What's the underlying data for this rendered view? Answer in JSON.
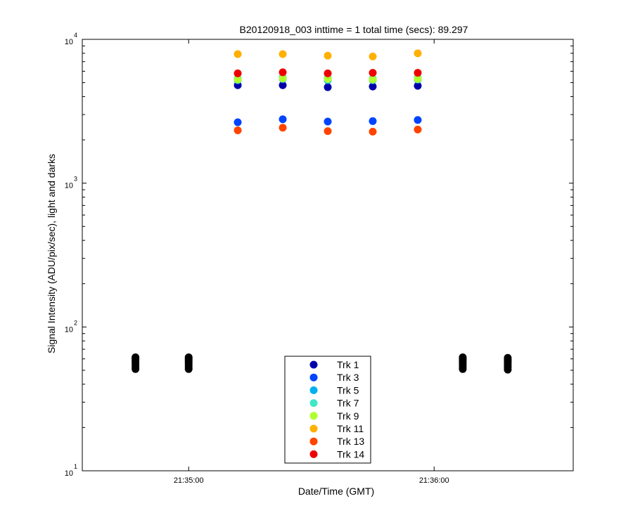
{
  "chart_data": {
    "type": "scatter",
    "title": "B20120918_003 inttime = 1 total time (secs): 89.297",
    "xlabel": "Date/Time (GMT)",
    "ylabel": "Signal Intensity (ADU/pix/sec), light and darks",
    "x_axis_type": "time",
    "xlim": [
      "21:34:34",
      "21:36:34"
    ],
    "y_scale": "log",
    "ylim": [
      10,
      10000
    ],
    "grid": false,
    "legend_position": "bottom-center",
    "y_ticks": [
      {
        "value": 10,
        "base": "10",
        "exponent": "1"
      },
      {
        "value": 100,
        "base": "10",
        "exponent": "2"
      },
      {
        "value": 1000,
        "base": "10",
        "exponent": "3"
      },
      {
        "value": 10000,
        "base": "10",
        "exponent": "4"
      }
    ],
    "x_ticks": [
      "21:35:00",
      "21:36:00"
    ],
    "light_times": [
      "21:35:12",
      "21:35:23",
      "21:35:34",
      "21:35:45",
      "21:35:56"
    ],
    "dark_times": [
      "21:34:47",
      "21:35:00",
      "21:36:07",
      "21:36:18"
    ],
    "series": [
      {
        "name": "Trk 1",
        "color": "#0000aa",
        "x": "light_times",
        "values": [
          4800,
          4800,
          4650,
          4700,
          4750
        ]
      },
      {
        "name": "Trk 3",
        "color": "#0044ff",
        "x": "light_times",
        "values": [
          2650,
          2780,
          2680,
          2700,
          2750
        ]
      },
      {
        "name": "Trk 5",
        "color": "#00b0f0",
        "x": "light_times",
        "values": [
          5200,
          5300,
          5200,
          5200,
          5250
        ]
      },
      {
        "name": "Trk 7",
        "color": "#40e8c8",
        "x": "light_times",
        "values": [
          5350,
          5450,
          5400,
          5350,
          5400
        ]
      },
      {
        "name": "Trk 9",
        "color": "#b0ff30",
        "x": "light_times",
        "values": [
          5250,
          5350,
          5300,
          5250,
          5300
        ]
      },
      {
        "name": "Trk 11",
        "color": "#ffb000",
        "x": "light_times",
        "values": [
          7900,
          7900,
          7700,
          7600,
          8000
        ]
      },
      {
        "name": "Trk 13",
        "color": "#ff4400",
        "x": "light_times",
        "values": [
          2330,
          2430,
          2300,
          2280,
          2360
        ]
      },
      {
        "name": "Trk 14",
        "color": "#ee0000",
        "x": "light_times",
        "values": [
          5800,
          5900,
          5800,
          5850,
          5850
        ]
      },
      {
        "name": "",
        "color": "#000000",
        "x": "dark_times",
        "values": [
          [
            51,
            53,
            55,
            57,
            58.5,
            60,
            61.5
          ],
          [
            51,
            53,
            55,
            57,
            58.5,
            60,
            61.5
          ],
          [
            51,
            53,
            55,
            57,
            58.5,
            60,
            61.5
          ],
          [
            50.5,
            52.5,
            54.5,
            56.5,
            58,
            59.5,
            61
          ]
        ]
      }
    ]
  }
}
